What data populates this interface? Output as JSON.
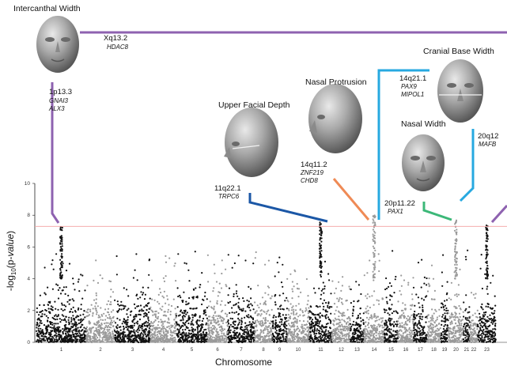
{
  "chart_data": {
    "type": "scatter",
    "subtype": "manhattan",
    "xlabel": "Chromosome",
    "ylabel": "-log10(p-value)",
    "ylabel_prefix": "-log",
    "ylabel_sub": "10",
    "ylabel_paren": "(p-",
    "ylabel_italic": "value",
    "ylabel_close": ")",
    "ylim": [
      0,
      10
    ],
    "yticks": [
      "0",
      "2",
      "4",
      "6",
      "8",
      "10"
    ],
    "chromosomes": [
      "1",
      "2",
      "3",
      "4",
      "5",
      "6",
      "7",
      "8",
      "9",
      "10",
      "11",
      "12",
      "13",
      "14",
      "15",
      "16",
      "17",
      "18",
      "19",
      "20",
      "21",
      "22",
      "23"
    ],
    "chromosome_colors": [
      "#111111",
      "#9a9a9a"
    ],
    "significance_threshold": 7.3,
    "threshold_color": "#f4a0a0",
    "peaks": [
      {
        "chr": "1",
        "max": 7.35
      },
      {
        "chr": "11",
        "max": 7.6
      },
      {
        "chr": "14",
        "max": 8.0
      },
      {
        "chr": "20",
        "max": 7.7
      },
      {
        "chr": "23",
        "max": 7.4
      }
    ],
    "annotations": [
      {
        "trait": "Intercanthal Width",
        "locus": "1p13.3",
        "genes": [
          "GNAI3",
          "ALX3"
        ],
        "color": "#8e62b0",
        "chr": "1"
      },
      {
        "trait": "",
        "locus": "Xq13.2",
        "genes": [
          "HDAC8"
        ],
        "color": "#8e62b0",
        "chr": "23"
      },
      {
        "trait": "Upper Facial Depth",
        "locus": "11q22.1",
        "genes": [
          "TRPC6"
        ],
        "color": "#1b57a6",
        "chr": "11"
      },
      {
        "trait": "Nasal Protrusion",
        "locus": "14q11.2",
        "genes": [
          "ZNF219",
          "CHD8"
        ],
        "color": "#ef8a55",
        "chr": "14"
      },
      {
        "trait": "Cranial Base Width",
        "locus": "14q21.1",
        "genes": [
          "PAX9",
          "MIPOL1"
        ],
        "color": "#27a9e0",
        "chr": "14"
      },
      {
        "trait": "Nasal Width",
        "locus": "20p11.22",
        "genes": [
          "PAX1"
        ],
        "color": "#3cb878",
        "chr": "20"
      },
      {
        "trait": "",
        "locus": "20q12",
        "genes": [
          "MAFB"
        ],
        "color": "#27a9e0",
        "chr": "20"
      }
    ]
  }
}
